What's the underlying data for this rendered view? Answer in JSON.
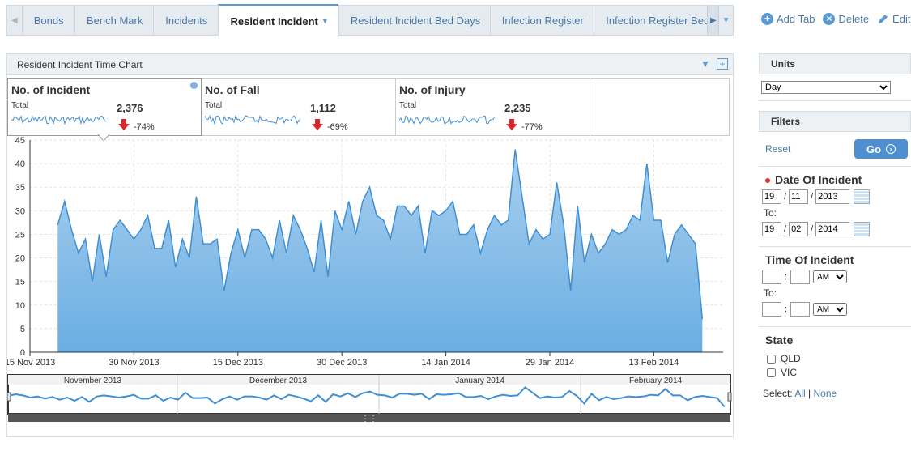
{
  "tabs": [
    {
      "label": "Bonds"
    },
    {
      "label": "Bench Mark"
    },
    {
      "label": "Incidents"
    },
    {
      "label": "Resident Incident",
      "active": true
    },
    {
      "label": "Resident Incident Bed Days"
    },
    {
      "label": "Infection Register"
    },
    {
      "label": "Infection Register Bed Days"
    }
  ],
  "tab_actions": {
    "add": "Add Tab",
    "delete": "Delete",
    "edit": "Edit"
  },
  "panel": {
    "title": "Resident Incident Time Chart"
  },
  "kpis": [
    {
      "title": "No. of Incident",
      "sub": "Total",
      "value": "2,376",
      "change": "-74%",
      "selected": true
    },
    {
      "title": "No. of Fall",
      "sub": "Total",
      "value": "1,112",
      "change": "-69%"
    },
    {
      "title": "No. of Injury",
      "sub": "Total",
      "value": "2,235",
      "change": "-77%"
    }
  ],
  "sidebar": {
    "units_title": "Units",
    "units_value": "Day",
    "filters_title": "Filters",
    "reset": "Reset",
    "go": "Go",
    "date_title": "Date Of Incident",
    "date_from": {
      "d": "19",
      "m": "11",
      "y": "2013"
    },
    "to_label": "To:",
    "date_to": {
      "d": "19",
      "m": "02",
      "y": "2014"
    },
    "time_title": "Time Of Incident",
    "ampm": "AM",
    "state_title": "State",
    "states": [
      "QLD",
      "VIC"
    ],
    "select_label": "Select:",
    "select_all": "All",
    "select_none": "None"
  },
  "chart_data": {
    "type": "area",
    "title": "",
    "xlabel": "",
    "ylabel": "",
    "ylim": [
      0,
      45
    ],
    "yticks": [
      0,
      5,
      10,
      15,
      20,
      25,
      30,
      35,
      40,
      45
    ],
    "xlim": [
      "2013-11-15",
      "2014-02-23"
    ],
    "xticks": [
      "15 Nov 2013",
      "30 Nov 2013",
      "15 Dec 2013",
      "30 Dec 2013",
      "14 Jan 2014",
      "29 Jan 2014",
      "13 Feb 2014"
    ],
    "grid": true,
    "start_date": "2013-11-19",
    "series": [
      {
        "values": [
          27,
          32,
          26,
          21,
          24,
          15,
          25,
          16,
          26,
          28,
          26,
          24,
          26,
          29,
          22,
          22,
          28,
          18,
          24,
          20,
          33,
          23,
          23,
          24,
          13,
          21,
          26,
          20,
          26,
          26,
          24,
          20,
          28,
          21,
          29,
          26,
          22,
          17,
          28,
          16,
          30,
          26,
          32,
          25,
          32,
          35,
          29,
          28,
          24,
          31,
          31,
          29,
          31,
          21,
          30,
          29,
          30,
          32,
          25,
          25,
          27,
          21,
          26,
          29,
          27,
          28,
          43,
          33,
          23,
          26,
          24,
          25,
          36,
          27,
          13,
          31,
          19,
          25,
          21,
          23,
          26,
          25,
          26,
          29,
          28,
          40,
          28,
          28,
          19,
          25,
          27,
          25,
          23,
          7
        ]
      }
    ],
    "navigator": {
      "months": [
        "November 2013",
        "December 2013",
        "January 2014",
        "February 2014"
      ]
    }
  }
}
